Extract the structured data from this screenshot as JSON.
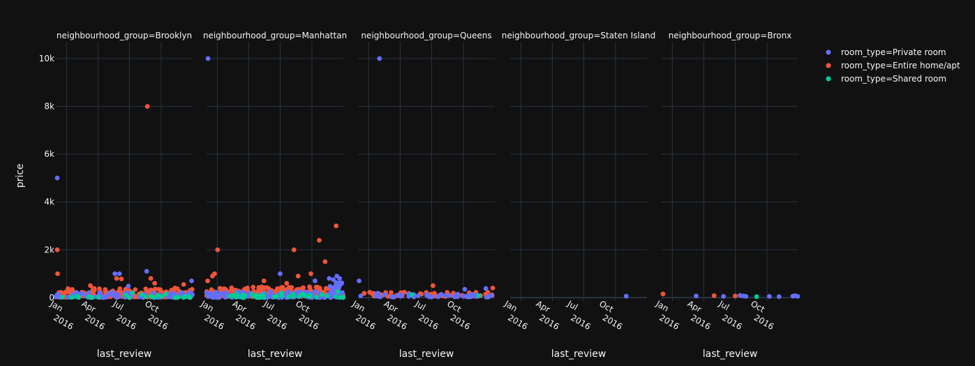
{
  "chart_data": {
    "type": "scatter",
    "xlabel": "last_review",
    "ylabel": "price",
    "x_range": [
      "2015-12-01",
      "2016-12-31"
    ],
    "y_range": [
      -150,
      10700
    ],
    "y_ticks": [
      0,
      2000,
      4000,
      6000,
      8000,
      10000
    ],
    "y_tick_labels": [
      "0",
      "2k",
      "4k",
      "6k",
      "8k",
      "10k"
    ],
    "x_ticks": [
      "2016-01-01",
      "2016-04-01",
      "2016-07-01",
      "2016-10-01"
    ],
    "x_tick_labels": [
      "Jan 2016",
      "Apr 2016",
      "Jul 2016",
      "Oct 2016"
    ],
    "grid": true,
    "legend_position": "top-right",
    "background": "#111111",
    "series": [
      {
        "name": "room_type=Private room",
        "color": "#636efa"
      },
      {
        "name": "room_type=Entire home/apt",
        "color": "#EF553B"
      },
      {
        "name": "room_type=Shared room",
        "color": "#00cc96"
      }
    ],
    "facets": [
      {
        "title": "neighbourhood_group=Brooklyn",
        "points": [
          {
            "s": 0,
            "x": "2015-12-05",
            "y": 5000
          },
          {
            "s": 1,
            "x": "2015-12-05",
            "y": 2000
          },
          {
            "s": 1,
            "x": "2015-12-06",
            "y": 1000
          },
          {
            "s": 0,
            "x": "2016-05-20",
            "y": 1000
          },
          {
            "s": 0,
            "x": "2016-06-02",
            "y": 1000
          },
          {
            "s": 1,
            "x": "2016-05-25",
            "y": 800
          },
          {
            "s": 1,
            "x": "2016-06-08",
            "y": 780
          },
          {
            "s": 1,
            "x": "2016-08-22",
            "y": 8000
          },
          {
            "s": 0,
            "x": "2016-08-20",
            "y": 1100
          },
          {
            "s": 1,
            "x": "2016-09-01",
            "y": 800
          },
          {
            "s": 1,
            "x": "2016-09-12",
            "y": 600
          },
          {
            "s": 0,
            "x": "2016-06-28",
            "y": 480
          },
          {
            "s": 1,
            "x": "2016-03-10",
            "y": 500
          },
          {
            "s": 0,
            "x": "2016-12-28",
            "y": 700
          },
          {
            "s": 1,
            "x": "2016-12-05",
            "y": 550
          },
          {
            "s": 1,
            "x": "2016-11-10",
            "y": 400
          },
          {
            "s": 2,
            "x": "2016-07-10",
            "y": 200
          },
          {
            "s": 2,
            "x": "2016-10-15",
            "y": 150
          },
          {
            "s": 2,
            "x": "2016-08-05",
            "y": 120
          }
        ],
        "dense": [
          {
            "s": 1,
            "x0": "2015-12-01",
            "x1": "2016-12-31",
            "y0": 20,
            "y1": 380,
            "n": 170,
            "seed": 11
          },
          {
            "s": 0,
            "x0": "2015-12-01",
            "x1": "2016-12-31",
            "y0": 0,
            "y1": 220,
            "n": 90,
            "seed": 12
          },
          {
            "s": 2,
            "x0": "2015-12-01",
            "x1": "2016-12-31",
            "y0": 0,
            "y1": 120,
            "n": 25,
            "seed": 13
          }
        ]
      },
      {
        "title": "neighbourhood_group=Manhattan",
        "points": [
          {
            "s": 0,
            "x": "2015-12-05",
            "y": 10000
          },
          {
            "s": 1,
            "x": "2016-01-02",
            "y": 2000
          },
          {
            "s": 1,
            "x": "2015-12-24",
            "y": 1000
          },
          {
            "s": 1,
            "x": "2015-12-18",
            "y": 900
          },
          {
            "s": 1,
            "x": "2015-12-04",
            "y": 700
          },
          {
            "s": 0,
            "x": "2016-07-01",
            "y": 1000
          },
          {
            "s": 1,
            "x": "2016-08-10",
            "y": 2000
          },
          {
            "s": 1,
            "x": "2016-08-22",
            "y": 900
          },
          {
            "s": 1,
            "x": "2016-09-28",
            "y": 1000
          },
          {
            "s": 1,
            "x": "2016-10-22",
            "y": 2400
          },
          {
            "s": 1,
            "x": "2016-11-08",
            "y": 1500
          },
          {
            "s": 1,
            "x": "2016-12-10",
            "y": 3000
          },
          {
            "s": 0,
            "x": "2016-12-12",
            "y": 900
          },
          {
            "s": 0,
            "x": "2016-12-20",
            "y": 800
          },
          {
            "s": 0,
            "x": "2016-12-02",
            "y": 750
          },
          {
            "s": 0,
            "x": "2016-11-20",
            "y": 800
          },
          {
            "s": 0,
            "x": "2016-10-10",
            "y": 700
          },
          {
            "s": 1,
            "x": "2016-05-15",
            "y": 700
          },
          {
            "s": 1,
            "x": "2016-07-20",
            "y": 600
          },
          {
            "s": 2,
            "x": "2016-07-05",
            "y": 200
          },
          {
            "s": 2,
            "x": "2016-12-15",
            "y": 250
          }
        ],
        "dense": [
          {
            "s": 1,
            "x0": "2015-12-01",
            "x1": "2016-12-31",
            "y0": 40,
            "y1": 450,
            "n": 230,
            "seed": 21
          },
          {
            "s": 0,
            "x0": "2015-12-01",
            "x1": "2016-12-31",
            "y0": 0,
            "y1": 250,
            "n": 110,
            "seed": 22
          },
          {
            "s": 2,
            "x0": "2016-02-01",
            "x1": "2016-12-31",
            "y0": 0,
            "y1": 150,
            "n": 45,
            "seed": 23
          },
          {
            "s": 0,
            "x0": "2016-11-20",
            "x1": "2016-12-31",
            "y0": 200,
            "y1": 650,
            "n": 18,
            "seed": 24
          }
        ]
      },
      {
        "title": "neighbourhood_group=Queens",
        "points": [
          {
            "s": 0,
            "x": "2016-02-01",
            "y": 10000
          },
          {
            "s": 0,
            "x": "2015-12-04",
            "y": 700
          },
          {
            "s": 1,
            "x": "2016-07-05",
            "y": 500
          },
          {
            "s": 1,
            "x": "2016-12-25",
            "y": 400
          },
          {
            "s": 0,
            "x": "2016-12-05",
            "y": 380
          },
          {
            "s": 0,
            "x": "2016-10-05",
            "y": 350
          },
          {
            "s": 2,
            "x": "2016-05-05",
            "y": 120
          },
          {
            "s": 2,
            "x": "2016-11-15",
            "y": 80
          }
        ],
        "dense": [
          {
            "s": 1,
            "x0": "2015-12-01",
            "x1": "2016-12-31",
            "y0": 40,
            "y1": 230,
            "n": 55,
            "seed": 31
          },
          {
            "s": 0,
            "x0": "2015-12-01",
            "x1": "2016-12-31",
            "y0": 20,
            "y1": 180,
            "n": 45,
            "seed": 32
          }
        ]
      },
      {
        "title": "neighbourhood_group=Staten Island",
        "points": [
          {
            "s": 0,
            "x": "2016-11-01",
            "y": 60
          }
        ],
        "dense": []
      },
      {
        "title": "neighbourhood_group=Bronx",
        "points": [
          {
            "s": 1,
            "x": "2015-12-05",
            "y": 150
          },
          {
            "s": 0,
            "x": "2016-03-10",
            "y": 70
          },
          {
            "s": 1,
            "x": "2016-05-01",
            "y": 80
          },
          {
            "s": 0,
            "x": "2016-05-28",
            "y": 50
          },
          {
            "s": 1,
            "x": "2016-07-01",
            "y": 70
          },
          {
            "s": 0,
            "x": "2016-07-15",
            "y": 90
          },
          {
            "s": 0,
            "x": "2016-07-25",
            "y": 70
          },
          {
            "s": 0,
            "x": "2016-08-01",
            "y": 50
          },
          {
            "s": 2,
            "x": "2016-09-01",
            "y": 40
          },
          {
            "s": 0,
            "x": "2016-10-08",
            "y": 50
          },
          {
            "s": 0,
            "x": "2016-11-05",
            "y": 40
          },
          {
            "s": 0,
            "x": "2016-12-15",
            "y": 60
          },
          {
            "s": 0,
            "x": "2016-12-22",
            "y": 80
          },
          {
            "s": 0,
            "x": "2016-12-29",
            "y": 50
          }
        ],
        "dense": []
      }
    ]
  }
}
